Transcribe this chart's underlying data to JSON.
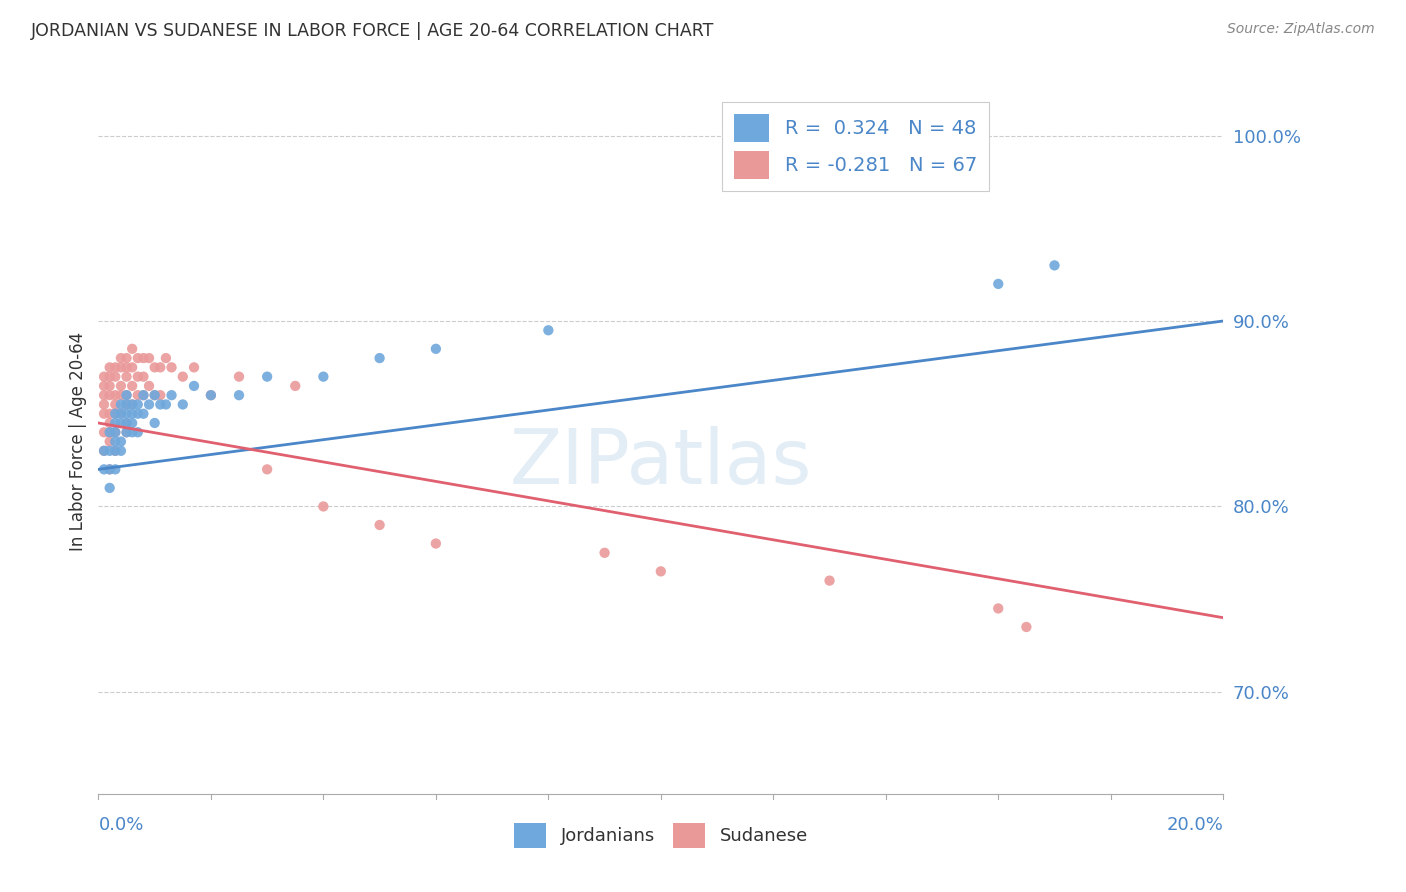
{
  "title": "JORDANIAN VS SUDANESE IN LABOR FORCE | AGE 20-64 CORRELATION CHART",
  "source": "Source: ZipAtlas.com",
  "ylabel": "In Labor Force | Age 20-64",
  "xmin": 0.0,
  "xmax": 0.2,
  "ymin": 0.645,
  "ymax": 1.025,
  "yticks": [
    0.7,
    0.8,
    0.9,
    1.0
  ],
  "ytick_labels": [
    "70.0%",
    "80.0%",
    "90.0%",
    "100.0%"
  ],
  "blue_color": "#6fa8dc",
  "pink_color": "#ea9999",
  "blue_line_color": "#4a86c8",
  "pink_line_color": "#e06070",
  "legend_label1": "R =  0.324   N = 48",
  "legend_label2": "R = -0.281   N = 67",
  "watermark": "ZIPatlas",
  "blue_x": [
    0.001,
    0.001,
    0.002,
    0.002,
    0.002,
    0.002,
    0.003,
    0.003,
    0.003,
    0.003,
    0.003,
    0.003,
    0.004,
    0.004,
    0.004,
    0.004,
    0.004,
    0.005,
    0.005,
    0.005,
    0.005,
    0.005,
    0.006,
    0.006,
    0.006,
    0.006,
    0.007,
    0.007,
    0.007,
    0.008,
    0.008,
    0.009,
    0.01,
    0.01,
    0.011,
    0.012,
    0.013,
    0.015,
    0.017,
    0.02,
    0.025,
    0.03,
    0.04,
    0.05,
    0.06,
    0.08,
    0.16,
    0.17
  ],
  "blue_y": [
    0.83,
    0.82,
    0.84,
    0.83,
    0.82,
    0.81,
    0.85,
    0.845,
    0.84,
    0.835,
    0.83,
    0.82,
    0.855,
    0.85,
    0.845,
    0.835,
    0.83,
    0.86,
    0.855,
    0.85,
    0.845,
    0.84,
    0.855,
    0.85,
    0.845,
    0.84,
    0.855,
    0.85,
    0.84,
    0.86,
    0.85,
    0.855,
    0.86,
    0.845,
    0.855,
    0.855,
    0.86,
    0.855,
    0.865,
    0.86,
    0.86,
    0.87,
    0.87,
    0.88,
    0.885,
    0.895,
    0.92,
    0.93
  ],
  "pink_x": [
    0.001,
    0.001,
    0.001,
    0.001,
    0.001,
    0.001,
    0.001,
    0.002,
    0.002,
    0.002,
    0.002,
    0.002,
    0.002,
    0.002,
    0.002,
    0.002,
    0.003,
    0.003,
    0.003,
    0.003,
    0.003,
    0.003,
    0.003,
    0.004,
    0.004,
    0.004,
    0.004,
    0.004,
    0.005,
    0.005,
    0.005,
    0.005,
    0.005,
    0.005,
    0.005,
    0.006,
    0.006,
    0.006,
    0.006,
    0.007,
    0.007,
    0.007,
    0.008,
    0.008,
    0.008,
    0.009,
    0.009,
    0.01,
    0.01,
    0.011,
    0.011,
    0.012,
    0.013,
    0.015,
    0.017,
    0.02,
    0.025,
    0.03,
    0.035,
    0.04,
    0.05,
    0.06,
    0.09,
    0.1,
    0.13,
    0.16,
    0.165
  ],
  "pink_y": [
    0.87,
    0.865,
    0.86,
    0.855,
    0.85,
    0.84,
    0.83,
    0.875,
    0.87,
    0.865,
    0.86,
    0.85,
    0.845,
    0.84,
    0.835,
    0.82,
    0.875,
    0.87,
    0.86,
    0.855,
    0.85,
    0.84,
    0.83,
    0.88,
    0.875,
    0.865,
    0.86,
    0.85,
    0.88,
    0.875,
    0.87,
    0.86,
    0.855,
    0.845,
    0.84,
    0.885,
    0.875,
    0.865,
    0.855,
    0.88,
    0.87,
    0.86,
    0.88,
    0.87,
    0.86,
    0.88,
    0.865,
    0.875,
    0.86,
    0.875,
    0.86,
    0.88,
    0.875,
    0.87,
    0.875,
    0.86,
    0.87,
    0.82,
    0.865,
    0.8,
    0.79,
    0.78,
    0.775,
    0.765,
    0.76,
    0.745,
    0.735
  ],
  "blue_trend_x": [
    0.0,
    0.2
  ],
  "blue_trend_y": [
    0.82,
    0.9
  ],
  "pink_trend_x": [
    0.0,
    0.2
  ],
  "pink_trend_y": [
    0.845,
    0.74
  ],
  "title_color": "#333333",
  "axis_color": "#4a86c8",
  "grid_color": "#cccccc",
  "background_color": "#ffffff"
}
